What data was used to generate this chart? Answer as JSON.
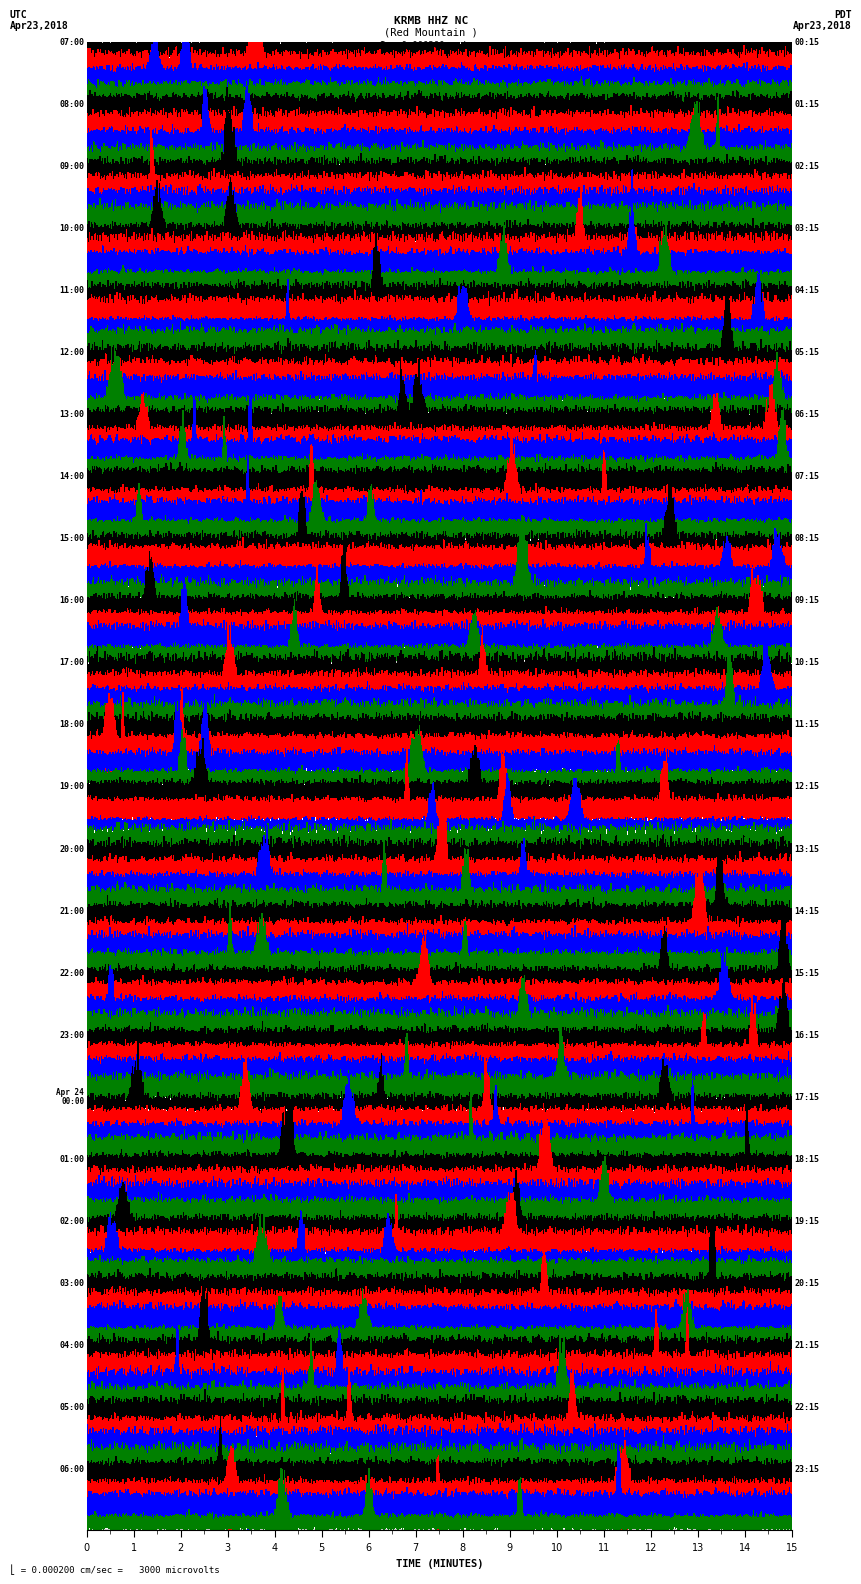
{
  "title_line1": "KRMB HHZ NC",
  "title_line2": "(Red Mountain )",
  "scale_label": "I = 0.000200 cm/sec",
  "utc_label1": "UTC",
  "utc_label2": "Apr23,2018",
  "pdt_label1": "PDT",
  "pdt_label2": "Apr23,2018",
  "left_times": [
    "07:00",
    "08:00",
    "09:00",
    "10:00",
    "11:00",
    "12:00",
    "13:00",
    "14:00",
    "15:00",
    "16:00",
    "17:00",
    "18:00",
    "19:00",
    "20:00",
    "21:00",
    "22:00",
    "23:00",
    "Apr 24\n00:00",
    "01:00",
    "02:00",
    "03:00",
    "04:00",
    "05:00",
    "06:00"
  ],
  "right_times": [
    "00:15",
    "01:15",
    "02:15",
    "03:15",
    "04:15",
    "05:15",
    "06:15",
    "07:15",
    "08:15",
    "09:15",
    "10:15",
    "11:15",
    "12:15",
    "13:15",
    "14:15",
    "15:15",
    "16:15",
    "17:15",
    "18:15",
    "19:15",
    "20:15",
    "21:15",
    "22:15",
    "23:15"
  ],
  "xlabel": "TIME (MINUTES)",
  "bottom_label": "= 0.000200 cm/sec =   3000 microvolts",
  "colors": [
    "black",
    "red",
    "blue",
    "green"
  ],
  "bg_color": "white",
  "num_rows": 24,
  "traces_per_row": 4,
  "minutes": 15,
  "amplitude_black": 0.45,
  "amplitude_red": 0.55,
  "amplitude_blue": 0.38,
  "amplitude_green": 0.22,
  "noise_seed": 42
}
